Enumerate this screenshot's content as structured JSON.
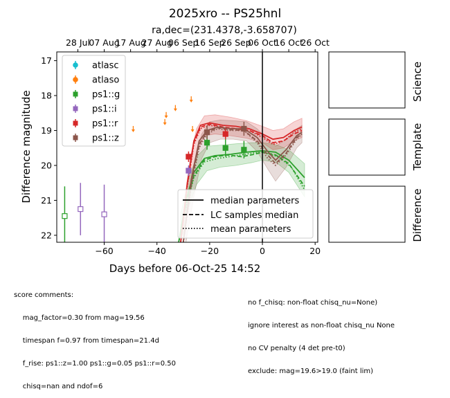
{
  "chart_data": {
    "type": "scatter",
    "title": "2025xro -- PS25hnl",
    "subtitle": "ra,dec=(231.4378,-3.658707)",
    "xlabel": "Days before 06-Oct-25 14:52",
    "ylabel": "Difference magnitude",
    "xlim": [
      -78,
      21
    ],
    "ylim": [
      22.2,
      16.75
    ],
    "y_inverted": true,
    "x_ticks": [
      -60,
      -40,
      -20,
      0,
      20
    ],
    "y_ticks": [
      17,
      18,
      19,
      20,
      21,
      22
    ],
    "top_axis_ticks": [
      {
        "x": -70,
        "label": "28 Jul"
      },
      {
        "x": -60,
        "label": "07 Aug"
      },
      {
        "x": -50,
        "label": "17 Aug"
      },
      {
        "x": -40,
        "label": "27 Aug"
      },
      {
        "x": -30,
        "label": "06 Sep"
      },
      {
        "x": -20,
        "label": "16 Sep"
      },
      {
        "x": -10,
        "label": "26 Sep"
      },
      {
        "x": 0,
        "label": "06 Oct"
      },
      {
        "x": 10,
        "label": "16 Oct"
      },
      {
        "x": 20,
        "label": "26 Oct"
      }
    ],
    "reference_line_x": 0,
    "series": [
      {
        "name": "atlasc",
        "color": "#17becf",
        "marker": "circle",
        "points": []
      },
      {
        "name": "atlaso",
        "color": "#ff7f0e",
        "marker": "circle",
        "upper_limits": true,
        "points": [
          [
            -49,
            18.95
          ],
          [
            -37,
            18.75
          ],
          [
            -36.5,
            18.55
          ],
          [
            -33,
            18.35
          ],
          [
            -27,
            18.1
          ],
          [
            -26.5,
            18.95
          ]
        ]
      },
      {
        "name": "ps1::g",
        "color": "#2ca02c",
        "marker": "square",
        "points": [
          [
            -75,
            21.45,
            0.85,
            false
          ],
          [
            -21,
            19.35,
            0.2,
            true
          ],
          [
            -14,
            19.5,
            0.25,
            true
          ],
          [
            -7,
            19.55,
            0.25,
            true
          ]
        ]
      },
      {
        "name": "ps1::i",
        "color": "#9467bd",
        "marker": "square",
        "points": [
          [
            -69,
            21.25,
            0.75,
            false
          ],
          [
            -60,
            21.4,
            0.85,
            false
          ],
          [
            -28,
            20.15,
            0.15,
            true
          ]
        ]
      },
      {
        "name": "ps1::r",
        "color": "#d62728",
        "marker": "square",
        "points": [
          [
            -28,
            19.75,
            0.15,
            true
          ],
          [
            -14,
            19.1,
            0.15,
            true
          ]
        ]
      },
      {
        "name": "ps1::z",
        "color": "#8c564b",
        "marker": "square",
        "points": [
          [
            -21,
            19.05,
            0.2,
            true
          ],
          [
            -7,
            18.95,
            0.2,
            true
          ]
        ]
      }
    ],
    "model_curves": [
      {
        "band": "ps1::g",
        "color": "#2ca02c",
        "style": "solid",
        "points": [
          [
            -32,
            22.3
          ],
          [
            -29,
            21.0
          ],
          [
            -26,
            20.2
          ],
          [
            -22,
            19.8
          ],
          [
            -18,
            19.72
          ],
          [
            -12,
            19.68
          ],
          [
            -6,
            19.62
          ],
          [
            0,
            19.58
          ],
          [
            5,
            19.62
          ],
          [
            10,
            19.85
          ],
          [
            16,
            20.35
          ]
        ]
      },
      {
        "band": "ps1::g",
        "color": "#2ca02c",
        "style": "dashed",
        "points": [
          [
            -32,
            22.3
          ],
          [
            -29,
            21.1
          ],
          [
            -26,
            20.3
          ],
          [
            -22,
            19.85
          ],
          [
            -18,
            19.75
          ],
          [
            -13,
            19.7
          ],
          [
            -8,
            19.75
          ],
          [
            -3,
            19.68
          ],
          [
            0,
            19.62
          ],
          [
            5,
            19.7
          ],
          [
            10,
            19.95
          ],
          [
            16,
            20.6
          ]
        ]
      },
      {
        "band": "ps1::g",
        "color": "#2ca02c",
        "style": "dotted",
        "points": [
          [
            -32,
            22.3
          ],
          [
            -29,
            21.2
          ],
          [
            -26,
            20.35
          ],
          [
            -22,
            19.9
          ],
          [
            -17,
            19.8
          ],
          [
            -10,
            19.72
          ],
          [
            -4,
            19.65
          ],
          [
            0,
            19.62
          ],
          [
            6,
            19.75
          ],
          [
            11,
            20.05
          ],
          [
            16,
            20.7
          ]
        ]
      },
      {
        "band": "ps1::r",
        "color": "#d62728",
        "style": "solid",
        "points": [
          [
            -31,
            22.2
          ],
          [
            -28.5,
            20.5
          ],
          [
            -26,
            19.3
          ],
          [
            -23.5,
            18.85
          ],
          [
            -20,
            18.78
          ],
          [
            -15,
            18.85
          ],
          [
            -10,
            18.88
          ],
          [
            -5,
            18.95
          ],
          [
            0,
            19.1
          ],
          [
            4,
            19.25
          ],
          [
            8,
            19.2
          ],
          [
            12,
            19.0
          ],
          [
            15,
            18.9
          ]
        ]
      },
      {
        "band": "ps1::r",
        "color": "#d62728",
        "style": "dashed",
        "points": [
          [
            -31,
            22.2
          ],
          [
            -28.5,
            20.55
          ],
          [
            -26,
            19.35
          ],
          [
            -23.5,
            18.9
          ],
          [
            -20,
            18.82
          ],
          [
            -15,
            18.9
          ],
          [
            -10,
            18.95
          ],
          [
            -5,
            19.0
          ],
          [
            0,
            19.15
          ],
          [
            4,
            19.35
          ],
          [
            8,
            19.3
          ],
          [
            12,
            19.1
          ],
          [
            15,
            19.0
          ]
        ]
      },
      {
        "band": "ps1::r",
        "color": "#d62728",
        "style": "dotted",
        "points": [
          [
            -31,
            22.2
          ],
          [
            -28.5,
            20.6
          ],
          [
            -26,
            19.4
          ],
          [
            -23.5,
            18.95
          ],
          [
            -20,
            18.85
          ],
          [
            -15,
            18.92
          ],
          [
            -10,
            18.95
          ],
          [
            -5,
            19.0
          ],
          [
            0,
            19.2
          ],
          [
            4,
            19.4
          ],
          [
            8,
            19.3
          ],
          [
            12,
            19.05
          ],
          [
            15,
            18.95
          ]
        ]
      },
      {
        "band": "ps1::z",
        "color": "#8c564b",
        "style": "solid",
        "points": [
          [
            -30,
            22.2
          ],
          [
            -27,
            20.4
          ],
          [
            -24,
            19.3
          ],
          [
            -21,
            19.0
          ],
          [
            -17,
            18.9
          ],
          [
            -12,
            18.95
          ],
          [
            -7,
            18.95
          ],
          [
            -2,
            19.2
          ],
          [
            2,
            19.6
          ],
          [
            5,
            19.85
          ],
          [
            9,
            19.55
          ],
          [
            13,
            19.15
          ],
          [
            15,
            19.05
          ]
        ]
      },
      {
        "band": "ps1::z",
        "color": "#8c564b",
        "style": "dashed",
        "points": [
          [
            -30,
            22.2
          ],
          [
            -27,
            20.5
          ],
          [
            -24,
            19.4
          ],
          [
            -21,
            19.05
          ],
          [
            -17,
            18.92
          ],
          [
            -12,
            18.98
          ],
          [
            -7,
            19.0
          ],
          [
            -2,
            19.3
          ],
          [
            2,
            19.7
          ],
          [
            5,
            19.95
          ],
          [
            9,
            19.65
          ],
          [
            13,
            19.2
          ],
          [
            15,
            19.1
          ]
        ]
      },
      {
        "band": "ps1::z",
        "color": "#8c564b",
        "style": "dotted",
        "points": [
          [
            -30,
            22.2
          ],
          [
            -27,
            20.6
          ],
          [
            -24,
            19.5
          ],
          [
            -21,
            19.1
          ],
          [
            -17,
            18.95
          ],
          [
            -12,
            19.0
          ],
          [
            -7,
            19.0
          ],
          [
            -2,
            19.35
          ],
          [
            2,
            19.8
          ],
          [
            5,
            20.0
          ],
          [
            9,
            19.7
          ],
          [
            13,
            19.25
          ],
          [
            15,
            19.1
          ]
        ]
      }
    ],
    "uncertainty_bands": [
      {
        "band": "ps1::g",
        "color": "#2ca02c",
        "upper": [
          [
            -31,
            21.4
          ],
          [
            -28,
            20.4
          ],
          [
            -25,
            19.75
          ],
          [
            -21,
            19.45
          ],
          [
            -16,
            19.42
          ],
          [
            -10,
            19.38
          ],
          [
            -4,
            19.35
          ],
          [
            0,
            19.35
          ],
          [
            5,
            19.4
          ],
          [
            10,
            19.55
          ],
          [
            16,
            19.95
          ]
        ],
        "lower": [
          [
            -31,
            22.2
          ],
          [
            -28,
            21.2
          ],
          [
            -25,
            20.55
          ],
          [
            -21,
            20.15
          ],
          [
            -16,
            20.05
          ],
          [
            -10,
            20.0
          ],
          [
            -4,
            19.92
          ],
          [
            0,
            19.85
          ],
          [
            5,
            19.9
          ],
          [
            10,
            20.2
          ],
          [
            16,
            20.9
          ]
        ]
      },
      {
        "band": "ps1::r",
        "color": "#d62728",
        "upper": [
          [
            -30,
            21.4
          ],
          [
            -27.5,
            19.85
          ],
          [
            -25,
            18.95
          ],
          [
            -22,
            18.58
          ],
          [
            -18,
            18.55
          ],
          [
            -12,
            18.62
          ],
          [
            -6,
            18.72
          ],
          [
            0,
            18.88
          ],
          [
            4,
            19.0
          ],
          [
            8,
            18.95
          ],
          [
            12,
            18.75
          ],
          [
            15,
            18.65
          ]
        ],
        "lower": [
          [
            -30,
            22.2
          ],
          [
            -27.5,
            20.9
          ],
          [
            -25,
            19.65
          ],
          [
            -22,
            19.15
          ],
          [
            -18,
            19.1
          ],
          [
            -12,
            19.15
          ],
          [
            -6,
            19.22
          ],
          [
            0,
            19.35
          ],
          [
            4,
            19.55
          ],
          [
            8,
            19.5
          ],
          [
            12,
            19.3
          ],
          [
            15,
            19.2
          ]
        ]
      },
      {
        "band": "ps1::z",
        "color": "#8c564b",
        "upper": [
          [
            -29,
            21.3
          ],
          [
            -26,
            19.95
          ],
          [
            -23,
            19.1
          ],
          [
            -20,
            18.75
          ],
          [
            -16,
            18.7
          ],
          [
            -11,
            18.72
          ],
          [
            -6,
            18.75
          ],
          [
            -2,
            18.95
          ],
          [
            2,
            19.25
          ],
          [
            5,
            19.45
          ],
          [
            9,
            19.25
          ],
          [
            13,
            18.95
          ],
          [
            15,
            18.85
          ]
        ],
        "lower": [
          [
            -29,
            22.2
          ],
          [
            -26,
            20.9
          ],
          [
            -23,
            19.8
          ],
          [
            -20,
            19.35
          ],
          [
            -16,
            19.25
          ],
          [
            -11,
            19.25
          ],
          [
            -6,
            19.3
          ],
          [
            -2,
            19.6
          ],
          [
            2,
            20.1
          ],
          [
            5,
            20.45
          ],
          [
            9,
            20.05
          ],
          [
            13,
            19.5
          ],
          [
            15,
            19.35
          ]
        ]
      }
    ],
    "legend_placement": "top-left",
    "line_legend_placement": "bottom-right",
    "line_legend": [
      "median parameters",
      "LC samples median",
      "mean parameters"
    ],
    "grid": false
  },
  "panels": {
    "science": "Science",
    "template": "Template",
    "difference": "Difference"
  },
  "comments": {
    "left": [
      "score comments:",
      "    mag_factor=0.30 from mag=19.56",
      "    timespan f=0.97 from timespan=21.4d",
      "    f_rise: ps1::z=1.00 ps1::g=0.05 ps1::r=0.50",
      "    chisq=nan and ndof=6"
    ],
    "right": [
      "no f_chisq: non-float chisq_nu=None)",
      "ignore interest as non-float chisq_nu None",
      "no CV penalty (4 det pre-t0)",
      "exclude: mag=19.6>19.0 (faint lim)"
    ]
  }
}
